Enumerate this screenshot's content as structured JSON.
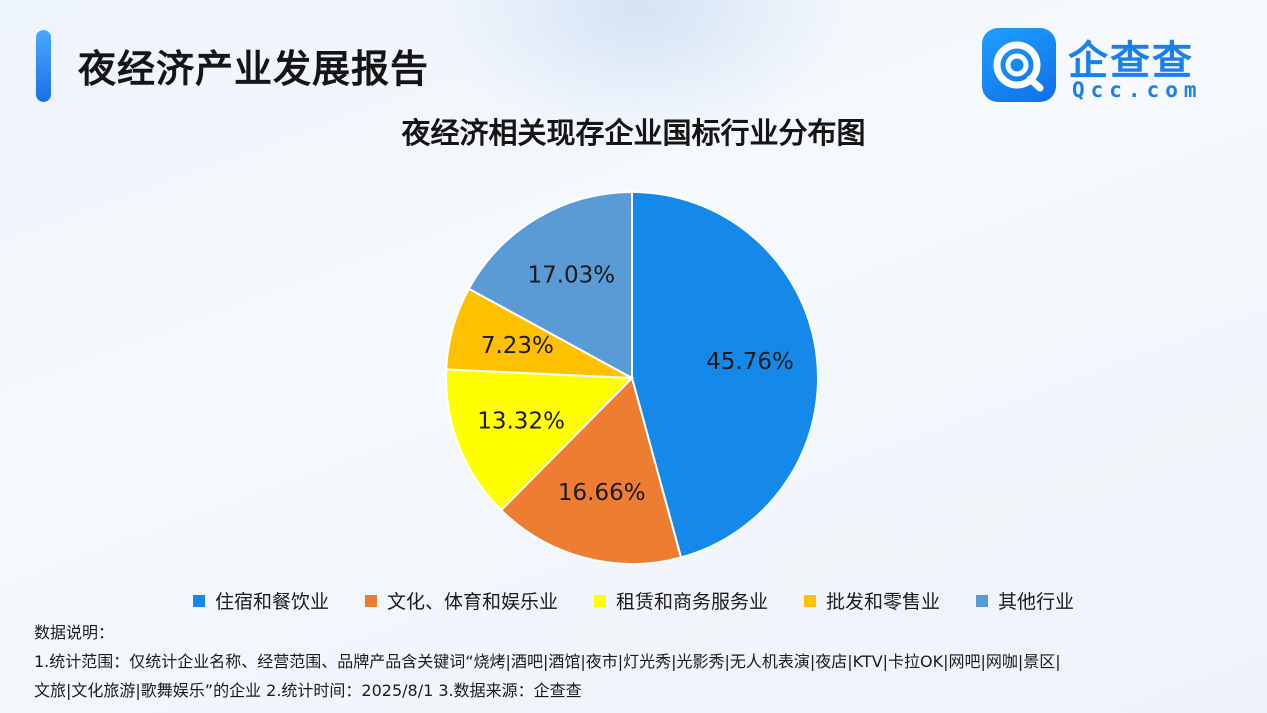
{
  "header": {
    "title": "夜经济产业发展报告"
  },
  "logo": {
    "name": "企查查",
    "domain": "Qcc.com",
    "brand_color": "#1b7ef2"
  },
  "chart_data": {
    "type": "pie",
    "title": "夜经济相关现存企业国标行业分布图",
    "categories": [
      "住宿和餐饮业",
      "文化、体育和娱乐业",
      "租赁和商务服务业",
      "批发和零售业",
      "其他行业"
    ],
    "values": [
      45.76,
      16.66,
      13.32,
      7.23,
      17.03
    ],
    "value_labels": [
      "45.76%",
      "16.66%",
      "13.32%",
      "7.23%",
      "17.03%"
    ],
    "colors": [
      "#1589ea",
      "#ed7d31",
      "#ffff00",
      "#ffc000",
      "#5b9bd5"
    ],
    "legend_position": "bottom"
  },
  "notes": {
    "heading": "数据说明：",
    "line1": "1.统计范围：仅统计企业名称、经营范围、品牌产品含关键词“烧烤|酒吧|酒馆|夜市|灯光秀|光影秀|无人机表演|夜店|KTV|卡拉OK|网吧|网咖|景区|",
    "line2": "文旅|文化旅游|歌舞娱乐”的企业 2.统计时间：2025/8/1 3.数据来源：企查查"
  }
}
